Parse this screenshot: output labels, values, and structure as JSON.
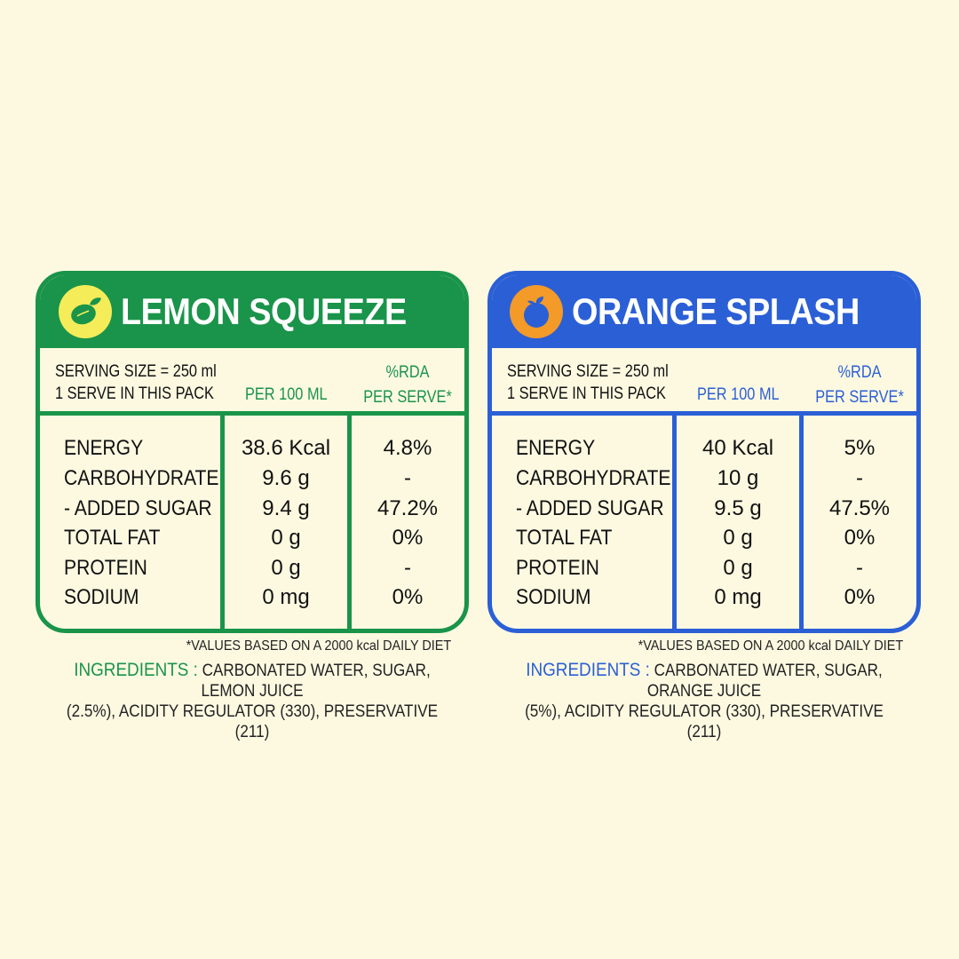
{
  "colors": {
    "background": "#fdf9e1",
    "lemon_accent": "#1a944a",
    "orange_accent": "#2b5fd6"
  },
  "labels": [
    {
      "title": "LEMON SQUEEZE",
      "icon": "lemon-icon",
      "serving_line1": "SERVING SIZE = 250 ml",
      "serving_line2": "1 SERVE IN THIS PACK",
      "per100_header": "PER 100 ML",
      "rda_header_line1": "%RDA",
      "rda_header_line2": "PER SERVE*",
      "rows": [
        {
          "nutrient": "ENERGY",
          "per100": "38.6 Kcal",
          "rda": "4.8%"
        },
        {
          "nutrient": "CARBOHYDRATE",
          "per100": "9.6 g",
          "rda": "-"
        },
        {
          "nutrient": "- ADDED SUGAR",
          "per100": "9.4 g",
          "rda": "47.2%"
        },
        {
          "nutrient": "TOTAL FAT",
          "per100": "0 g",
          "rda": "0%"
        },
        {
          "nutrient": "PROTEIN",
          "per100": "0 g",
          "rda": "-"
        },
        {
          "nutrient": "SODIUM",
          "per100": "0 mg",
          "rda": "0%"
        }
      ],
      "footnote": "*VALUES BASED ON A 2000 kcal DAILY DIET",
      "ingredients_label": "INGREDIENTS :",
      "ingredients_line1": "CARBONATED WATER, SUGAR, LEMON JUICE",
      "ingredients_line2": "(2.5%), ACIDITY REGULATOR (330), PRESERVATIVE (211)"
    },
    {
      "title": "ORANGE SPLASH",
      "icon": "orange-icon",
      "serving_line1": "SERVING SIZE = 250 ml",
      "serving_line2": "1 SERVE IN THIS PACK",
      "per100_header": "PER 100 ML",
      "rda_header_line1": "%RDA",
      "rda_header_line2": "PER SERVE*",
      "rows": [
        {
          "nutrient": "ENERGY",
          "per100": "40 Kcal",
          "rda": "5%"
        },
        {
          "nutrient": "CARBOHYDRATE",
          "per100": "10 g",
          "rda": "-"
        },
        {
          "nutrient": "- ADDED SUGAR",
          "per100": "9.5 g",
          "rda": "47.5%"
        },
        {
          "nutrient": "TOTAL FAT",
          "per100": "0 g",
          "rda": "0%"
        },
        {
          "nutrient": "PROTEIN",
          "per100": "0 g",
          "rda": "-"
        },
        {
          "nutrient": "SODIUM",
          "per100": "0 mg",
          "rda": "0%"
        }
      ],
      "footnote": "*VALUES BASED ON A 2000 kcal DAILY DIET",
      "ingredients_label": "INGREDIENTS :",
      "ingredients_line1": "CARBONATED WATER, SUGAR, ORANGE JUICE",
      "ingredients_line2": "(5%), ACIDITY REGULATOR (330), PRESERVATIVE (211)"
    }
  ]
}
